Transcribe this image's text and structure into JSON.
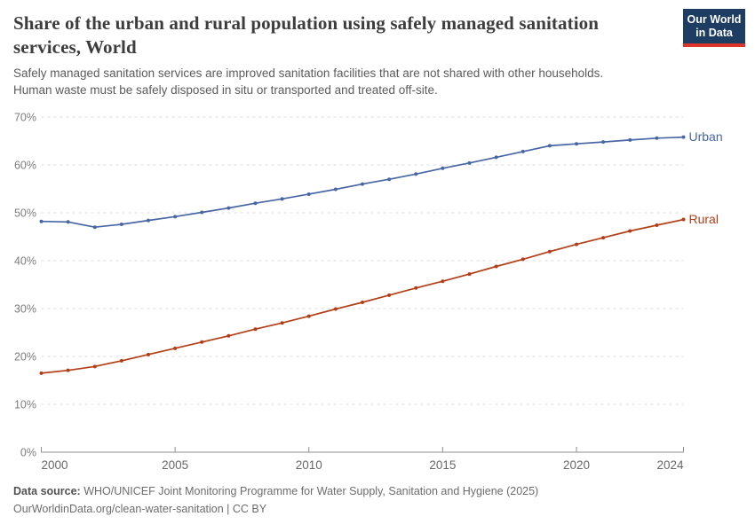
{
  "header": {
    "title": "Share of the urban and rural population using safely managed sanitation services, World",
    "title_line1": "Share of the urban and rural population using safely managed sanitation",
    "title_line2": "services, World",
    "subtitle_line1": "Safely managed sanitation services are improved sanitation facilities that are not shared with other households.",
    "subtitle_line2": "Human waste must be safely disposed in situ or transported and treated off-site.",
    "logo": {
      "line1": "Our World",
      "line2": "in Data"
    }
  },
  "footer": {
    "source_label": "Data source:",
    "source_text": " WHO/UNICEF Joint Monitoring Programme for Water Supply, Sanitation and Hygiene (2025)",
    "license_text": "OurWorldinData.org/clean-water-sanitation | CC BY"
  },
  "colors": {
    "logo_navy": "#1d3d63",
    "logo_red": "#dc352a",
    "urban": "#4766a4",
    "rural": "#b23e16",
    "gridline": "#dbdbdb",
    "axis": "#8f8f8f",
    "y_tick_label": "#7c7c7c",
    "x_tick_label": "#686868"
  },
  "chart_data": {
    "type": "line",
    "title": "Share of the urban and rural population using safely managed sanitation services, World",
    "x": [
      2000,
      2001,
      2002,
      2003,
      2004,
      2005,
      2006,
      2007,
      2008,
      2009,
      2010,
      2011,
      2012,
      2013,
      2014,
      2015,
      2016,
      2017,
      2018,
      2019,
      2020,
      2021,
      2022,
      2023,
      2024
    ],
    "series": [
      {
        "name": "Urban",
        "color": "#4766a4",
        "values": [
          48.2,
          48.1,
          47.0,
          47.6,
          48.4,
          49.2,
          50.1,
          51.0,
          52.0,
          52.9,
          53.9,
          54.9,
          56.0,
          57.0,
          58.1,
          59.3,
          60.4,
          61.6,
          62.8,
          64.0,
          64.4,
          64.8,
          65.2,
          65.6,
          65.8
        ]
      },
      {
        "name": "Rural",
        "color": "#b23e16",
        "values": [
          16.5,
          17.1,
          17.9,
          19.1,
          20.4,
          21.7,
          23.0,
          24.3,
          25.7,
          27.0,
          28.4,
          29.9,
          31.3,
          32.8,
          34.3,
          35.7,
          37.2,
          38.8,
          40.3,
          41.9,
          43.4,
          44.8,
          46.2,
          47.4,
          48.6
        ]
      }
    ],
    "xticks": [
      2000,
      2005,
      2010,
      2015,
      2020,
      2024
    ],
    "yticks": [
      0,
      10,
      20,
      30,
      40,
      50,
      60,
      70
    ],
    "ytick_suffix": "%",
    "xlim": [
      2000,
      2024
    ],
    "ylim": [
      0,
      70
    ],
    "grid": "horizontal-dashed",
    "legend_position": "line-end-labels",
    "markers": true
  }
}
